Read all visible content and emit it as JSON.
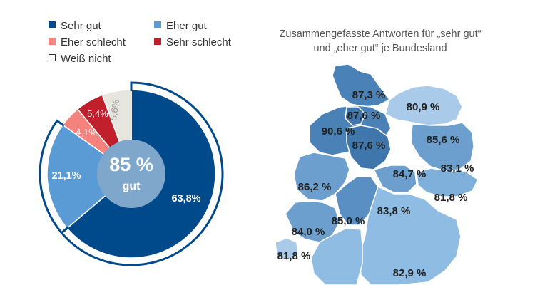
{
  "chart_data": [
    {
      "type": "pie",
      "legend": [
        {
          "label": "Sehr gut",
          "color": "#004a8c"
        },
        {
          "label": "Eher gut",
          "color": "#5b9bd5"
        },
        {
          "label": "Eher schlecht",
          "color": "#f4827d"
        },
        {
          "label": "Sehr schlecht",
          "color": "#c0202b"
        },
        {
          "label": "Weiß nicht",
          "color": "#e6e5de"
        }
      ],
      "slices": [
        {
          "label": "Sehr gut",
          "value": 63.8,
          "text": "63,8%",
          "color": "#004a8c"
        },
        {
          "label": "Eher gut",
          "value": 21.1,
          "text": "21,1%",
          "color": "#5b9bd5"
        },
        {
          "label": "Eher schlecht",
          "value": 4.1,
          "text": "4,1%",
          "color": "#f4827d"
        },
        {
          "label": "Sehr schlecht",
          "value": 5.4,
          "text": "5,4%",
          "color": "#c0202b"
        },
        {
          "label": "Weiß nicht",
          "value": 5.6,
          "text": "5,6%",
          "color": "#e6e5de"
        }
      ],
      "center": {
        "value": "85 %",
        "label": "gut"
      }
    },
    {
      "type": "map",
      "title": "Zusammengefasste Antworten für „sehr gut“ und „eher gut“ je Bundesland",
      "regions": [
        {
          "value": 87.3,
          "text": "87,3 %"
        },
        {
          "value": 87.6,
          "text": "87,6 %"
        },
        {
          "value": 80.9,
          "text": "80,9 %"
        },
        {
          "value": 90.6,
          "text": "90,6 %"
        },
        {
          "value": 87.6,
          "text": "87,6 %"
        },
        {
          "value": 85.6,
          "text": "85,6 %"
        },
        {
          "value": 84.7,
          "text": "84,7 %"
        },
        {
          "value": 83.1,
          "text": "83,1 %"
        },
        {
          "value": 86.2,
          "text": "86,2 %"
        },
        {
          "value": 81.8,
          "text": "81,8 %"
        },
        {
          "value": 83.8,
          "text": "83,8 %"
        },
        {
          "value": 85.0,
          "text": "85,0 %"
        },
        {
          "value": 84.0,
          "text": "84,0 %"
        },
        {
          "value": 81.8,
          "text": "81,8 %"
        },
        {
          "value": 82.9,
          "text": "82,9 %"
        }
      ]
    }
  ]
}
